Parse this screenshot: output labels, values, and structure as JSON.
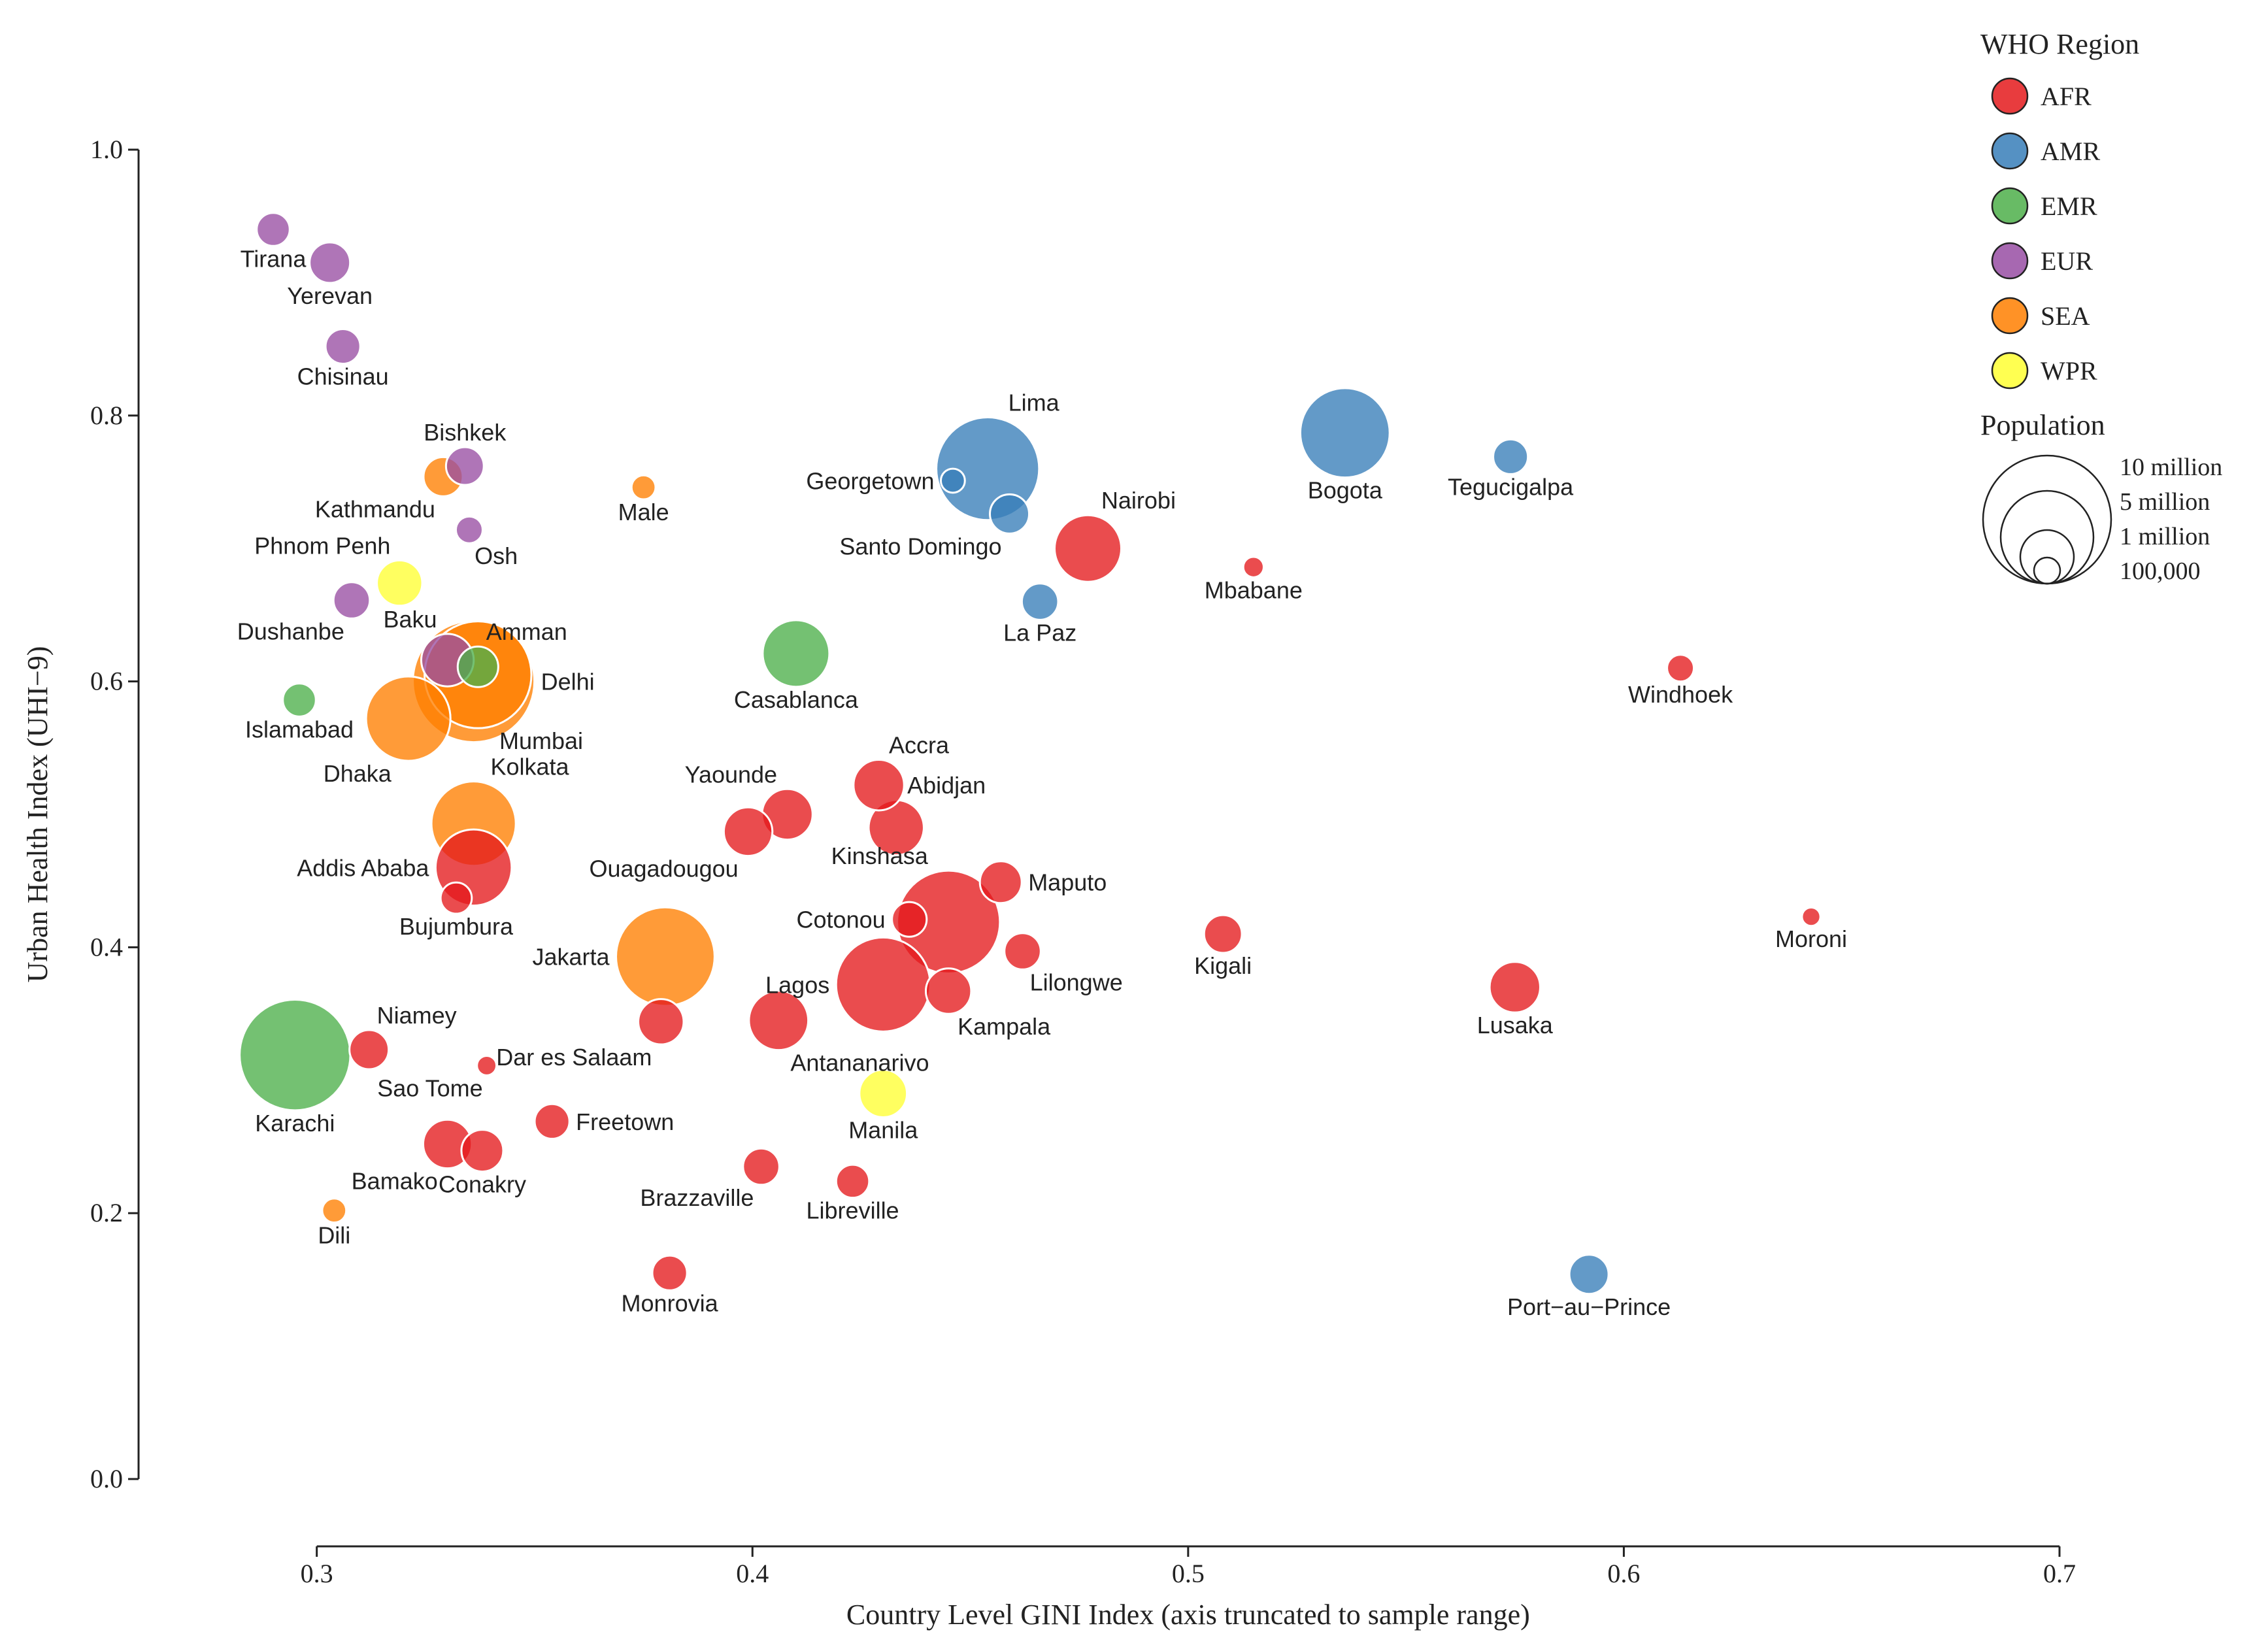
{
  "chart_data": {
    "type": "scatter",
    "xlabel": "Country Level GINI Index (axis truncated to sample range)",
    "ylabel": "Urban Health Index (UHI−9)",
    "xlim": [
      0.29,
      0.7
    ],
    "ylim": [
      0.0,
      1.0
    ],
    "x_ticks": [
      0.3,
      0.4,
      0.5,
      0.6,
      0.7
    ],
    "x_tick_labels": [
      "0.3",
      "0.4",
      "0.5",
      "0.6",
      "0.7"
    ],
    "y_ticks": [
      0.0,
      0.2,
      0.4,
      0.6,
      0.8,
      1.0
    ],
    "y_tick_labels": [
      "0.0",
      "0.2",
      "0.4",
      "0.6",
      "0.8",
      "1.0"
    ],
    "legend": {
      "title": "WHO Region",
      "placement": "top-right",
      "regions": [
        {
          "code": "AFR",
          "label": "AFR",
          "color": "#e41a1c"
        },
        {
          "code": "AMR",
          "label": "AMR",
          "color": "#377eb8"
        },
        {
          "code": "EMR",
          "label": "EMR",
          "color": "#4daf4a"
        },
        {
          "code": "EUR",
          "label": "EUR",
          "color": "#984ea3"
        },
        {
          "code": "SEA",
          "label": "SEA",
          "color": "#ff7f00"
        },
        {
          "code": "WPR",
          "label": "WPR",
          "color": "#ffff33"
        }
      ]
    },
    "size_legend": {
      "title": "Population",
      "entries": [
        {
          "label": "10 million",
          "population": 10000000
        },
        {
          "label": "5 million",
          "population": 5000000
        },
        {
          "label": "1 million",
          "population": 1000000
        },
        {
          "label": "100,000",
          "population": 100000
        }
      ]
    },
    "points": [
      {
        "city": "Tirana",
        "region": "EUR",
        "x": 0.29,
        "y": 0.94,
        "pop_millions": 0.6,
        "label_pos": "below"
      },
      {
        "city": "Yerevan",
        "region": "EUR",
        "x": 0.303,
        "y": 0.915,
        "pop_millions": 1.1,
        "label_pos": "below"
      },
      {
        "city": "Chisinau",
        "region": "EUR",
        "x": 0.306,
        "y": 0.852,
        "pop_millions": 0.7,
        "label_pos": "below"
      },
      {
        "city": "Bishkek",
        "region": "EUR",
        "x": 0.334,
        "y": 0.762,
        "pop_millions": 0.9,
        "label_pos": "above"
      },
      {
        "city": "Kathmandu",
        "region": "SEA",
        "x": 0.329,
        "y": 0.754,
        "pop_millions": 1.0,
        "label_pos": "below-left"
      },
      {
        "city": "Osh",
        "region": "EUR",
        "x": 0.335,
        "y": 0.714,
        "pop_millions": 0.3,
        "label_pos": "below-right"
      },
      {
        "city": "Male",
        "region": "SEA",
        "x": 0.375,
        "y": 0.746,
        "pop_millions": 0.2,
        "label_pos": "below"
      },
      {
        "city": "Phnom Penh",
        "region": "WPR",
        "x": 0.319,
        "y": 0.674,
        "pop_millions": 1.5,
        "label_pos": "above-left"
      },
      {
        "city": "Dushanbe",
        "region": "EUR",
        "x": 0.308,
        "y": 0.661,
        "pop_millions": 0.8,
        "label_pos": "below-left"
      },
      {
        "city": "Baku",
        "region": "EUR",
        "x": 0.33,
        "y": 0.616,
        "pop_millions": 2.2,
        "label_pos": "above-left"
      },
      {
        "city": "Amman",
        "region": "EMR",
        "x": 0.337,
        "y": 0.611,
        "pop_millions": 1.1,
        "label_pos": "above-right"
      },
      {
        "city": "Delhi",
        "region": "SEA",
        "x": 0.336,
        "y": 0.6,
        "pop_millions": 16.0,
        "label_pos": "right"
      },
      {
        "city": "Mumbai",
        "region": "SEA",
        "x": 0.337,
        "y": 0.605,
        "pop_millions": 12.0,
        "label_pos": "below-right"
      },
      {
        "city": "Islamabad",
        "region": "EMR",
        "x": 0.296,
        "y": 0.586,
        "pop_millions": 0.6,
        "label_pos": "below"
      },
      {
        "city": "Dhaka",
        "region": "SEA",
        "x": 0.321,
        "y": 0.572,
        "pop_millions": 7.0,
        "label_pos": "below-left"
      },
      {
        "city": "Kolkata",
        "region": "SEA",
        "x": 0.336,
        "y": 0.493,
        "pop_millions": 7.0,
        "label_pos": "above-right"
      },
      {
        "city": "Addis Ababa",
        "region": "AFR",
        "x": 0.336,
        "y": 0.46,
        "pop_millions": 5.5,
        "label_pos": "left"
      },
      {
        "city": "Bujumbura",
        "region": "AFR",
        "x": 0.332,
        "y": 0.437,
        "pop_millions": 0.5,
        "label_pos": "below"
      },
      {
        "city": "Lima",
        "region": "AMR",
        "x": 0.454,
        "y": 0.76,
        "pop_millions": 11.0,
        "label_pos": "above-right"
      },
      {
        "city": "Georgetown",
        "region": "AMR",
        "x": 0.446,
        "y": 0.751,
        "pop_millions": 0.2,
        "label_pos": "left"
      },
      {
        "city": "Santo Domingo",
        "region": "AMR",
        "x": 0.459,
        "y": 0.726,
        "pop_millions": 1.0,
        "label_pos": "below-left"
      },
      {
        "city": "Nairobi",
        "region": "AFR",
        "x": 0.477,
        "y": 0.7,
        "pop_millions": 4.0,
        "label_pos": "above-right"
      },
      {
        "city": "La Paz",
        "region": "AMR",
        "x": 0.466,
        "y": 0.66,
        "pop_millions": 0.8,
        "label_pos": "below"
      },
      {
        "city": "Bogota",
        "region": "AMR",
        "x": 0.536,
        "y": 0.787,
        "pop_millions": 8.0,
        "label_pos": "below"
      },
      {
        "city": "Tegucigalpa",
        "region": "AMR",
        "x": 0.574,
        "y": 0.769,
        "pop_millions": 0.7,
        "label_pos": "below"
      },
      {
        "city": "Mbabane",
        "region": "AFR",
        "x": 0.515,
        "y": 0.686,
        "pop_millions": 0.1,
        "label_pos": "below"
      },
      {
        "city": "Windhoek",
        "region": "AFR",
        "x": 0.613,
        "y": 0.61,
        "pop_millions": 0.3,
        "label_pos": "below"
      },
      {
        "city": "Casablanca",
        "region": "EMR",
        "x": 0.41,
        "y": 0.621,
        "pop_millions": 4.0,
        "label_pos": "below"
      },
      {
        "city": "Accra",
        "region": "AFR",
        "x": 0.429,
        "y": 0.522,
        "pop_millions": 2.0,
        "label_pos": "above-right"
      },
      {
        "city": "Yaounde",
        "region": "AFR",
        "x": 0.408,
        "y": 0.5,
        "pop_millions": 2.0,
        "label_pos": "above-left"
      },
      {
        "city": "Abidjan",
        "region": "AFR",
        "x": 0.433,
        "y": 0.49,
        "pop_millions": 2.5,
        "label_pos": "above-right"
      },
      {
        "city": "Ouagadougou",
        "region": "AFR",
        "x": 0.399,
        "y": 0.487,
        "pop_millions": 1.8,
        "label_pos": "below-left"
      },
      {
        "city": "Kinshasa",
        "region": "AFR",
        "x": 0.445,
        "y": 0.419,
        "pop_millions": 11.0,
        "label_pos": "above-left"
      },
      {
        "city": "Maputo",
        "region": "AFR",
        "x": 0.457,
        "y": 0.449,
        "pop_millions": 1.2,
        "label_pos": "right"
      },
      {
        "city": "Cotonou",
        "region": "AFR",
        "x": 0.436,
        "y": 0.421,
        "pop_millions": 0.7,
        "label_pos": "left"
      },
      {
        "city": "Lilongwe",
        "region": "AFR",
        "x": 0.462,
        "y": 0.397,
        "pop_millions": 0.8,
        "label_pos": "below-right"
      },
      {
        "city": "Kigali",
        "region": "AFR",
        "x": 0.508,
        "y": 0.41,
        "pop_millions": 0.9,
        "label_pos": "below"
      },
      {
        "city": "Moroni",
        "region": "AFR",
        "x": 0.643,
        "y": 0.423,
        "pop_millions": 0.06,
        "label_pos": "below"
      },
      {
        "city": "Lusaka",
        "region": "AFR",
        "x": 0.575,
        "y": 0.37,
        "pop_millions": 2.0,
        "label_pos": "below"
      },
      {
        "city": "Jakarta",
        "region": "SEA",
        "x": 0.38,
        "y": 0.393,
        "pop_millions": 10.0,
        "label_pos": "left"
      },
      {
        "city": "Lagos",
        "region": "AFR",
        "x": 0.43,
        "y": 0.372,
        "pop_millions": 9.0,
        "label_pos": "left"
      },
      {
        "city": "Kampala",
        "region": "AFR",
        "x": 0.445,
        "y": 0.367,
        "pop_millions": 1.5,
        "label_pos": "below-right"
      },
      {
        "city": "Antananarivo",
        "region": "AFR",
        "x": 0.406,
        "y": 0.345,
        "pop_millions": 3.0,
        "label_pos": "below-right"
      },
      {
        "city": "Dar es Salaam",
        "region": "AFR",
        "x": 0.379,
        "y": 0.344,
        "pop_millions": 1.5,
        "label_pos": "below-left"
      },
      {
        "city": "Niamey",
        "region": "AFR",
        "x": 0.312,
        "y": 0.323,
        "pop_millions": 1.0,
        "label_pos": "above-right"
      },
      {
        "city": "Karachi",
        "region": "EMR",
        "x": 0.295,
        "y": 0.319,
        "pop_millions": 13.0,
        "label_pos": "below"
      },
      {
        "city": "Sao Tome",
        "region": "AFR",
        "x": 0.339,
        "y": 0.311,
        "pop_millions": 0.08,
        "label_pos": "below-left"
      },
      {
        "city": "Manila",
        "region": "WPR",
        "x": 0.43,
        "y": 0.29,
        "pop_millions": 1.7,
        "label_pos": "below"
      },
      {
        "city": "Freetown",
        "region": "AFR",
        "x": 0.354,
        "y": 0.269,
        "pop_millions": 0.7,
        "label_pos": "right"
      },
      {
        "city": "Bamako",
        "region": "AFR",
        "x": 0.33,
        "y": 0.252,
        "pop_millions": 1.8,
        "label_pos": "below-left"
      },
      {
        "city": "Conakry",
        "region": "AFR",
        "x": 0.338,
        "y": 0.247,
        "pop_millions": 1.2,
        "label_pos": "below"
      },
      {
        "city": "Brazzaville",
        "region": "AFR",
        "x": 0.402,
        "y": 0.235,
        "pop_millions": 0.8,
        "label_pos": "below-left"
      },
      {
        "city": "Libreville",
        "region": "AFR",
        "x": 0.423,
        "y": 0.224,
        "pop_millions": 0.6,
        "label_pos": "below"
      },
      {
        "city": "Dili",
        "region": "SEA",
        "x": 0.304,
        "y": 0.202,
        "pop_millions": 0.2,
        "label_pos": "below"
      },
      {
        "city": "Monrovia",
        "region": "AFR",
        "x": 0.381,
        "y": 0.155,
        "pop_millions": 0.7,
        "label_pos": "below"
      },
      {
        "city": "Port−au−Prince",
        "region": "AMR",
        "x": 0.592,
        "y": 0.154,
        "pop_millions": 1.0,
        "label_pos": "below"
      }
    ]
  }
}
